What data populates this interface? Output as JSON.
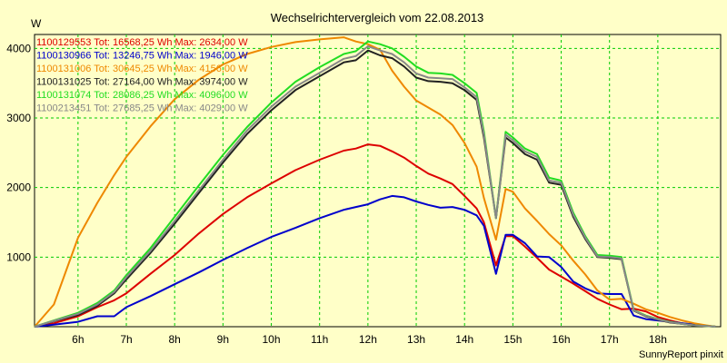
{
  "chart_data": {
    "type": "line",
    "title": "Wechselrichtervergleich vom 22.08.2013",
    "ylabel": "W",
    "xlabel": "",
    "footer": "SunnyReport pinxit",
    "ylim": [
      0,
      4200
    ],
    "xlim": [
      5.1,
      19.3
    ],
    "y_ticks": [
      1000,
      2000,
      3000,
      4000
    ],
    "x_ticks": [
      {
        "value": 6,
        "label": "6h"
      },
      {
        "value": 7,
        "label": "7h"
      },
      {
        "value": 8,
        "label": "8h"
      },
      {
        "value": 9,
        "label": "9h"
      },
      {
        "value": 10,
        "label": "10h"
      },
      {
        "value": 11,
        "label": "11h"
      },
      {
        "value": 12,
        "label": "12h"
      },
      {
        "value": 13,
        "label": "13h"
      },
      {
        "value": 14,
        "label": "14h"
      },
      {
        "value": 15,
        "label": "15h"
      },
      {
        "value": 16,
        "label": "16h"
      },
      {
        "value": 17,
        "label": "17h"
      },
      {
        "value": 18,
        "label": "18h"
      }
    ],
    "grid": true,
    "legend_position": "top-left",
    "x": [
      5.1,
      5.5,
      6.0,
      6.4,
      6.75,
      7.0,
      7.5,
      8.0,
      8.5,
      9.0,
      9.5,
      10.0,
      10.5,
      11.0,
      11.5,
      11.75,
      12.0,
      12.25,
      12.5,
      12.75,
      13.0,
      13.25,
      13.5,
      13.75,
      14.0,
      14.25,
      14.4,
      14.65,
      14.85,
      15.0,
      15.25,
      15.5,
      15.75,
      16.0,
      16.25,
      16.5,
      16.75,
      17.0,
      17.25,
      17.5,
      17.75,
      18.0,
      18.25,
      18.5,
      18.75,
      19.0,
      19.2
    ],
    "series": [
      {
        "name": "1100129553",
        "legend": "1100129553 Tot: 16568,25 Wh Max: 2634,00 W",
        "color": "#dd0000",
        "values": [
          0,
          50,
          150,
          280,
          380,
          480,
          760,
          1030,
          1340,
          1620,
          1860,
          2060,
          2250,
          2400,
          2530,
          2560,
          2620,
          2600,
          2520,
          2430,
          2310,
          2200,
          2130,
          2050,
          1880,
          1700,
          1500,
          880,
          1300,
          1300,
          1150,
          990,
          820,
          720,
          620,
          510,
          400,
          320,
          250,
          260,
          220,
          140,
          90,
          50,
          30,
          15,
          0
        ]
      },
      {
        "name": "1100130966",
        "legend": "1100130966 Tot: 13246,75 Wh Max: 1946,00 W",
        "color": "#0000cc",
        "values": [
          0,
          30,
          70,
          150,
          150,
          280,
          440,
          610,
          780,
          960,
          1130,
          1290,
          1420,
          1560,
          1680,
          1720,
          1760,
          1830,
          1880,
          1860,
          1800,
          1750,
          1710,
          1720,
          1680,
          1600,
          1450,
          760,
          1320,
          1320,
          1200,
          1010,
          1000,
          860,
          650,
          550,
          480,
          470,
          470,
          160,
          110,
          90,
          70,
          50,
          30,
          15,
          0
        ]
      },
      {
        "name": "1100131006",
        "legend": "1100131006 Tot: 30645,25 Wh Max: 4156,00 W",
        "color": "#ee8800",
        "values": [
          0,
          320,
          1280,
          1780,
          2180,
          2440,
          2880,
          3270,
          3550,
          3770,
          3920,
          4020,
          4090,
          4130,
          4160,
          4100,
          4060,
          3980,
          3680,
          3450,
          3250,
          3150,
          3050,
          2900,
          2640,
          2300,
          1850,
          1250,
          1980,
          1940,
          1700,
          1520,
          1330,
          1170,
          950,
          750,
          520,
          390,
          400,
          330,
          250,
          200,
          140,
          90,
          50,
          20,
          0
        ]
      },
      {
        "name": "1100131025",
        "legend": "1100131025 Tot: 27164,00 Wh Max: 3974,00 W",
        "color": "#222222",
        "values": [
          0,
          80,
          170,
          300,
          480,
          680,
          1060,
          1480,
          1920,
          2360,
          2770,
          3110,
          3400,
          3600,
          3800,
          3830,
          3970,
          3900,
          3860,
          3740,
          3580,
          3530,
          3520,
          3500,
          3400,
          3260,
          2720,
          1560,
          2720,
          2640,
          2480,
          2400,
          2070,
          2040,
          1580,
          1260,
          1000,
          990,
          970,
          230,
          150,
          100,
          60,
          40,
          20,
          10,
          0
        ]
      },
      {
        "name": "1100131074",
        "legend": "1100131074 Tot: 28086,25 Wh Max: 4096,00 W",
        "color": "#22dd22",
        "values": [
          0,
          90,
          200,
          340,
          520,
          740,
          1130,
          1580,
          2030,
          2470,
          2870,
          3220,
          3520,
          3730,
          3920,
          3960,
          4100,
          4060,
          4000,
          3880,
          3740,
          3650,
          3640,
          3620,
          3500,
          3360,
          2800,
          1560,
          2800,
          2720,
          2560,
          2480,
          2140,
          2100,
          1640,
          1300,
          1030,
          1020,
          1000,
          240,
          160,
          110,
          70,
          40,
          20,
          10,
          0
        ]
      },
      {
        "name": "1100213451",
        "legend": "1100213451 Tot: 27685,25 Wh Max: 4029,00 W",
        "color": "#888888",
        "values": [
          0,
          85,
          185,
          320,
          500,
          710,
          1090,
          1520,
          1960,
          2400,
          2820,
          3160,
          3450,
          3650,
          3850,
          3890,
          4030,
          3970,
          3920,
          3800,
          3640,
          3580,
          3570,
          3560,
          3440,
          3300,
          2760,
          1560,
          2760,
          2680,
          2520,
          2440,
          2100,
          2070,
          1610,
          1280,
          1010,
          1000,
          980,
          235,
          155,
          105,
          65,
          40,
          20,
          10,
          0
        ]
      }
    ]
  }
}
